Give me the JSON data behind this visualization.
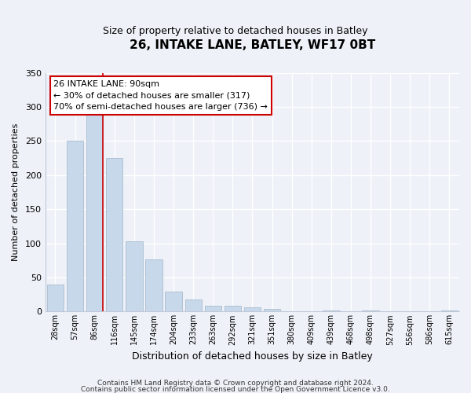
{
  "title": "26, INTAKE LANE, BATLEY, WF17 0BT",
  "subtitle": "Size of property relative to detached houses in Batley",
  "xlabel": "Distribution of detached houses by size in Batley",
  "ylabel": "Number of detached properties",
  "bar_color": "#c8d8eb",
  "bar_edgecolor": "#aabcce",
  "categories": [
    "28sqm",
    "57sqm",
    "86sqm",
    "116sqm",
    "145sqm",
    "174sqm",
    "204sqm",
    "233sqm",
    "263sqm",
    "292sqm",
    "321sqm",
    "351sqm",
    "380sqm",
    "409sqm",
    "439sqm",
    "468sqm",
    "498sqm",
    "527sqm",
    "556sqm",
    "586sqm",
    "615sqm"
  ],
  "values": [
    40,
    250,
    293,
    225,
    103,
    77,
    29,
    18,
    9,
    9,
    6,
    4,
    1,
    0,
    2,
    0,
    2,
    0,
    0,
    0,
    2
  ],
  "ylim": [
    0,
    350
  ],
  "yticks": [
    0,
    50,
    100,
    150,
    200,
    250,
    300,
    350
  ],
  "vline_x_index": 2,
  "vline_color": "#cc0000",
  "annotation_title": "26 INTAKE LANE: 90sqm",
  "annotation_line1": "← 30% of detached houses are smaller (317)",
  "annotation_line2": "70% of semi-detached houses are larger (736) →",
  "annotation_box_facecolor": "#ffffff",
  "annotation_box_edgecolor": "#cc0000",
  "footer_line1": "Contains HM Land Registry data © Crown copyright and database right 2024.",
  "footer_line2": "Contains public sector information licensed under the Open Government Licence v3.0.",
  "background_color": "#eef2f8",
  "grid_color": "#ffffff",
  "spine_color": "#c0c8d8"
}
